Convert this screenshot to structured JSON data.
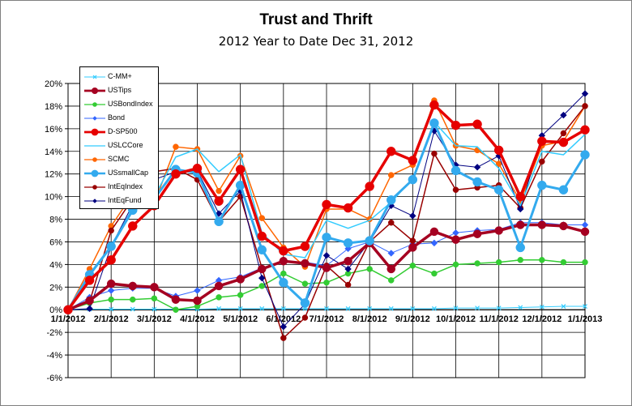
{
  "chart_data": {
    "type": "line",
    "title": "Trust and Thrift",
    "subtitle": "2012 Year to Date Dec 31, 2012",
    "xlabel": "",
    "ylabel": "",
    "ylim": [
      -6,
      20
    ],
    "y_ticks": [
      "-6%",
      "-4%",
      "-2%",
      "0%",
      "2%",
      "4%",
      "6%",
      "8%",
      "10%",
      "12%",
      "14%",
      "16%",
      "18%",
      "20%"
    ],
    "x_tick_labels": [
      "1/1/2012",
      "2/1/2012",
      "3/1/2012",
      "4/1/2012",
      "5/1/2012",
      "6/1/2012",
      "7/1/2012",
      "8/1/2012",
      "9/1/2012",
      "10/1/2012",
      "11/1/2012",
      "12/1/2012",
      "1/1/2013"
    ],
    "x_ticks": [
      0,
      2,
      4,
      6,
      8,
      10,
      12,
      14,
      16,
      18,
      20,
      22,
      24
    ],
    "x": [
      0,
      1,
      2,
      3,
      4,
      5,
      6,
      7,
      8,
      9,
      10,
      11,
      12,
      13,
      14,
      15,
      16,
      17,
      18,
      19,
      20,
      21,
      22,
      23,
      24
    ],
    "grid": "on",
    "legend_position": "top-left",
    "series": [
      {
        "name": "C-MM+",
        "color": "#33ccff",
        "width": 1,
        "marker": "x",
        "msize": 2.5,
        "values": [
          0,
          0.05,
          0.05,
          0.05,
          0.05,
          0.05,
          0.05,
          0.1,
          0.1,
          0.1,
          0.1,
          0.1,
          0.1,
          0.1,
          0.1,
          0.1,
          0.1,
          0.1,
          0.15,
          0.15,
          0.15,
          0.2,
          0.25,
          0.3,
          0.3
        ]
      },
      {
        "name": "USTips",
        "color": "#a50021",
        "width": 3.5,
        "marker": "circle",
        "msize": 5,
        "values": [
          0,
          0.8,
          2.3,
          2.1,
          2.0,
          0.9,
          0.8,
          2.1,
          2.7,
          3.6,
          4.3,
          4.1,
          3.7,
          4.3,
          5.9,
          3.6,
          5.5,
          6.9,
          6.2,
          6.7,
          7.0,
          7.5,
          7.5,
          7.4,
          6.9
        ]
      },
      {
        "name": "USBondIndex",
        "color": "#33cc33",
        "width": 1.5,
        "marker": "circle",
        "msize": 3.5,
        "values": [
          0,
          0.6,
          0.9,
          0.9,
          1.0,
          0.0,
          0.3,
          1.1,
          1.3,
          2.1,
          3.2,
          2.3,
          2.4,
          3.2,
          3.6,
          2.6,
          3.9,
          3.2,
          4.0,
          4.1,
          4.2,
          4.4,
          4.4,
          4.2,
          4.2
        ]
      },
      {
        "name": "Bond",
        "color": "#3366ff",
        "width": 1,
        "marker": "diamond",
        "msize": 3.5,
        "values": [
          0,
          1.1,
          1.7,
          1.9,
          1.9,
          1.2,
          1.7,
          2.6,
          2.9,
          3.7,
          4.3,
          4.2,
          3.9,
          5.4,
          6.0,
          5.0,
          5.8,
          5.9,
          6.8,
          7.0,
          7.1,
          7.7,
          7.7,
          7.5,
          7.5
        ]
      },
      {
        "name": "D-SP500",
        "color": "#e60000",
        "width": 3.5,
        "marker": "circle",
        "msize": 5.5,
        "values": [
          0,
          2.6,
          4.4,
          7.4,
          9.2,
          12.0,
          12.5,
          9.6,
          12.4,
          6.5,
          5.2,
          5.6,
          9.3,
          9.0,
          10.9,
          14.0,
          13.2,
          18.1,
          16.3,
          16.4,
          14.1,
          10.0,
          14.9,
          14.8,
          15.9
        ]
      },
      {
        "name": "USLCCore",
        "color": "#33ccff",
        "width": 1.5,
        "marker": "none",
        "msize": 0,
        "values": [
          0,
          3.0,
          5.5,
          9.0,
          10.0,
          13.5,
          14.2,
          12.2,
          13.7,
          6.8,
          4.9,
          4.6,
          7.9,
          7.2,
          7.9,
          9.5,
          11.6,
          16.6,
          14.5,
          14.4,
          12.5,
          9.2,
          14.0,
          13.7,
          15.5
        ]
      },
      {
        "name": "SCMC",
        "color": "#ff6600",
        "width": 1.5,
        "marker": "circle",
        "msize": 3.5,
        "values": [
          0,
          3.6,
          7.4,
          10.2,
          9.4,
          14.4,
          14.2,
          10.5,
          13.6,
          8.1,
          5.5,
          3.8,
          8.9,
          8.9,
          8.0,
          11.9,
          12.8,
          18.5,
          14.5,
          14.1,
          12.9,
          9.6,
          14.5,
          14.9,
          18.0
        ]
      },
      {
        "name": "USsmallCap",
        "color": "#33aaee",
        "width": 3,
        "marker": "circle",
        "msize": 5.5,
        "values": [
          0,
          3.1,
          5.6,
          8.8,
          9.8,
          12.4,
          12.1,
          7.8,
          11.0,
          5.3,
          2.4,
          0.6,
          6.4,
          5.9,
          6.1,
          9.7,
          11.5,
          16.5,
          12.3,
          11.3,
          10.6,
          5.5,
          11.0,
          10.6,
          13.7
        ]
      },
      {
        "name": "IntEqIndex",
        "color": "#990000",
        "width": 1.5,
        "marker": "circle",
        "msize": 3.5,
        "values": [
          0,
          0.7,
          7.0,
          9.8,
          12.2,
          12.5,
          11.5,
          7.8,
          10.0,
          3.7,
          -2.5,
          -0.7,
          3.9,
          2.2,
          6.0,
          7.7,
          6.1,
          13.8,
          10.6,
          10.8,
          11.0,
          9.0,
          13.1,
          15.6,
          18.0
        ]
      },
      {
        "name": "IntEqFund",
        "color": "#000080",
        "width": 1,
        "marker": "diamond",
        "msize": 3.5,
        "values": [
          0,
          0.1,
          5.6,
          9.3,
          11.5,
          12.2,
          12.3,
          8.5,
          10.5,
          2.8,
          -1.5,
          0.5,
          4.8,
          3.6,
          6.0,
          9.2,
          8.3,
          15.8,
          12.8,
          12.6,
          13.6,
          8.9,
          15.4,
          17.2,
          19.1
        ]
      }
    ]
  }
}
